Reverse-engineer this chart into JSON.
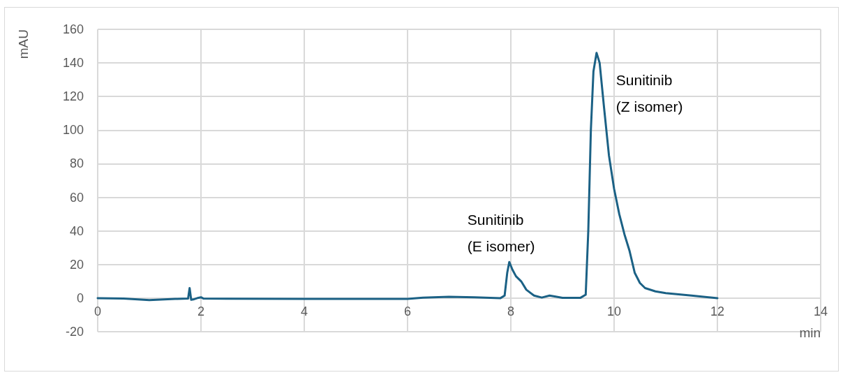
{
  "chart_data": {
    "type": "line",
    "xlabel": "min",
    "ylabel": "mAU",
    "xlim": [
      0,
      14
    ],
    "xticks": [
      0,
      2,
      4,
      6,
      8,
      10,
      12,
      14
    ],
    "ylim": [
      -20,
      160
    ],
    "yticks": [
      -20,
      0,
      20,
      40,
      60,
      80,
      100,
      120,
      140,
      160
    ],
    "grid": true,
    "marker": "none",
    "line_style": "solid",
    "annotations": [
      {
        "text": "Sunitinib\n(E isomer)",
        "x": 7.97,
        "y": 21.5
      },
      {
        "text": "Sunitinib\n(Z isomer)",
        "x": 9.66,
        "y": 146
      }
    ],
    "series": [
      {
        "color": "#1b6185",
        "x": [
          0,
          0.5,
          1.0,
          1.5,
          1.75,
          1.78,
          1.81,
          1.85,
          1.95,
          2.0,
          2.05,
          2.5,
          4,
          6,
          6.3,
          6.8,
          7.3,
          7.8,
          7.88,
          7.93,
          7.97,
          8.03,
          8.1,
          8.2,
          8.3,
          8.45,
          8.6,
          8.75,
          8.85,
          9.0,
          9.35,
          9.45,
          9.5,
          9.55,
          9.6,
          9.66,
          9.72,
          9.8,
          9.9,
          10.0,
          10.1,
          10.2,
          10.3,
          10.4,
          10.5,
          10.6,
          10.8,
          11.0,
          11.5,
          12
        ],
        "values": [
          0,
          -0.3,
          -1.2,
          -0.5,
          -0.3,
          6,
          -1,
          -0.8,
          0.2,
          0.5,
          -0.3,
          -0.4,
          -0.5,
          -0.5,
          0.3,
          0.8,
          0.5,
          0,
          1.5,
          15,
          21.5,
          17,
          13,
          10,
          5,
          1.5,
          0.3,
          1.5,
          1,
          0.2,
          0.2,
          2,
          40,
          100,
          135,
          146,
          140,
          115,
          85,
          65,
          50,
          38,
          28,
          15,
          9,
          6,
          4,
          3,
          1.5,
          0
        ]
      }
    ]
  }
}
